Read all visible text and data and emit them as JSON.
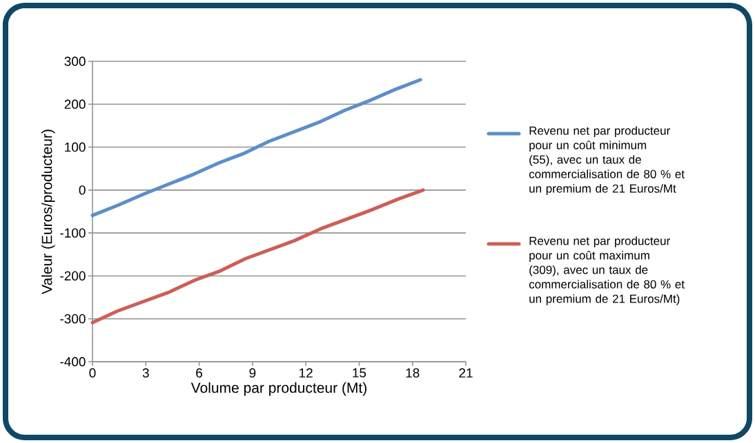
{
  "chart_data": {
    "type": "line",
    "xlabel": "Volume par producteur (Mt)",
    "ylabel": "Valeur (Euros/producteur)",
    "xlim": [
      0,
      21
    ],
    "xticks": [
      0,
      3,
      6,
      9,
      12,
      15,
      18,
      21
    ],
    "ylim": [
      -400,
      300
    ],
    "yticks": [
      -400,
      -300,
      -200,
      -100,
      0,
      100,
      200,
      300
    ],
    "grid": "y",
    "legend": "right",
    "marker": "none",
    "line_style": "solid",
    "series": [
      {
        "name": "Revenu net par producteur pour un coût minimum (55), avec un taux de commercialisation de 80 % et un premium de 21 Euros/Mt",
        "color": "#5b8fc9",
        "x": [
          0,
          1.4,
          2.9,
          5.7,
          7.15,
          8.55,
          9.9,
          12.8,
          14.2,
          15.5,
          17,
          18.45
        ],
        "values": [
          -59,
          -36,
          -9,
          37,
          64,
          86,
          113,
          159,
          186,
          207,
          234,
          257
        ]
      },
      {
        "name": "Revenu net par producteur pour un coût maximum (309), avec un taux de commercialisation de 80 % et un premium de 21 Euros/Mt)",
        "color": "#cc5f57",
        "x": [
          0,
          1.4,
          4.25,
          5.75,
          7.1,
          8.6,
          11.35,
          12.85,
          15.65,
          17.2,
          18.6
        ],
        "values": [
          -309,
          -282,
          -239,
          -210,
          -190,
          -160,
          -118,
          -90,
          -47,
          -21,
          0
        ]
      }
    ]
  }
}
